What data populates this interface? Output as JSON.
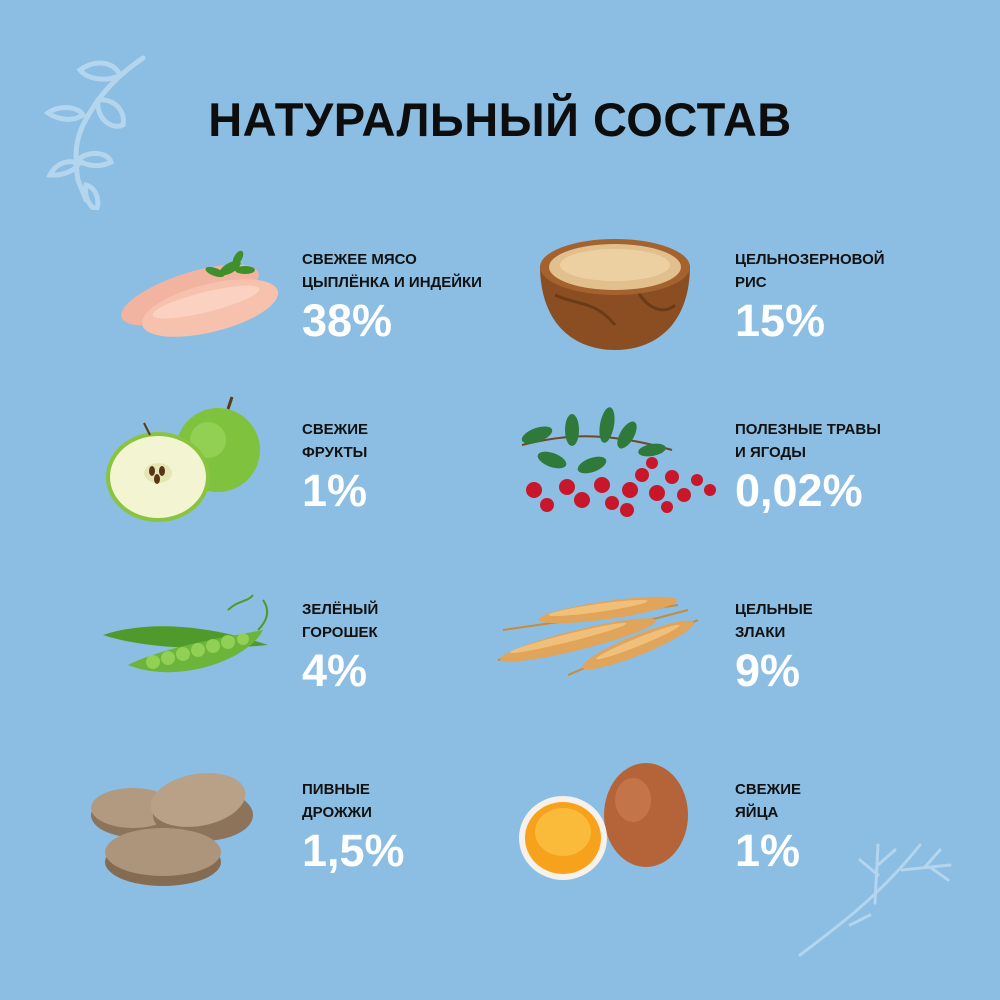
{
  "title": "НАТУРАЛЬНЫЙ СОСТАВ",
  "colors": {
    "background": "#8bbee2",
    "title": "#0d0d0d",
    "percent": "#ffffff",
    "label": "#111111"
  },
  "ingredients": [
    {
      "label": "СВЕЖЕЕ МЯСО\nЦЫПЛЁНКА И ИНДЕЙКИ",
      "percent": "38%",
      "icon": "chicken-breast-image"
    },
    {
      "label": "ЦЕЛЬНОЗЕРНОВОЙ\nРИС",
      "percent": "15%",
      "icon": "rice-bowl-image"
    },
    {
      "label": "СВЕЖИЕ\nФРУКТЫ",
      "percent": "1%",
      "icon": "green-apple-image"
    },
    {
      "label": "ПОЛЕЗНЫЕ ТРАВЫ\nИ ЯГОДЫ",
      "percent": "0,02%",
      "icon": "cranberry-image"
    },
    {
      "label": "ЗЕЛЁНЫЙ\nГОРОШЕК",
      "percent": "4%",
      "icon": "green-peas-image"
    },
    {
      "label": "ЦЕЛЬНЫЕ\nЗЛАКИ",
      "percent": "9%",
      "icon": "wheat-image"
    },
    {
      "label": "ПИВНЫЕ\nДРОЖЖИ",
      "percent": "1,5%",
      "icon": "brewers-yeast-tablets-image"
    },
    {
      "label": "СВЕЖИЕ\nЯЙЦА",
      "percent": "1%",
      "icon": "eggs-image"
    }
  ]
}
